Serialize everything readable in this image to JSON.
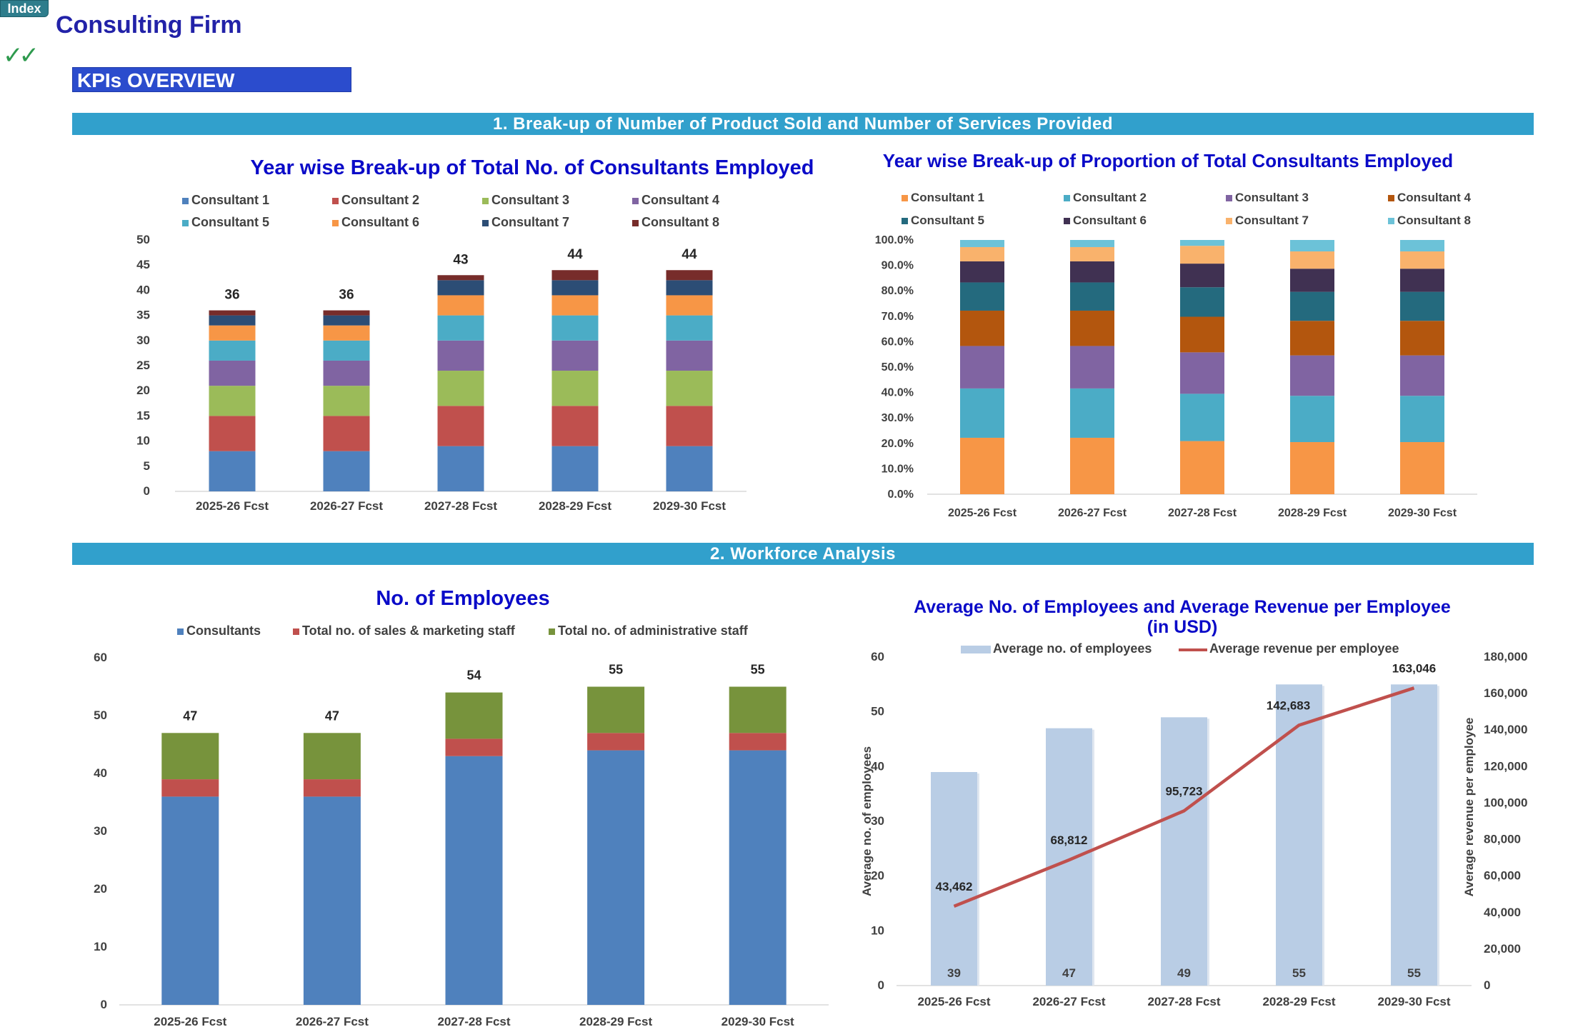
{
  "header": {
    "index_label": "Index",
    "firm_title": "Consulting Firm",
    "check_icon": "double-check-icon",
    "kpi_label": "KPIs OVERVIEW"
  },
  "sections": {
    "s1": "1. Break-up of Number of Product Sold and Number of Services Provided",
    "s2": "2. Workforce Analysis"
  },
  "colors": {
    "title": "#0a0ac8",
    "section_bar": "#31a0cc",
    "kpi_banner": "#2b4ccd"
  },
  "chart_data": [
    {
      "id": "consultants-stacked",
      "type": "bar",
      "stacked": true,
      "title": "Year wise Break-up of Total No. of Consultants Employed",
      "categories": [
        "2025-26 Fcst",
        "2026-27 Fcst",
        "2027-28 Fcst",
        "2028-29 Fcst",
        "2029-30 Fcst"
      ],
      "ylim": [
        0,
        50
      ],
      "yticks": [
        "0",
        "5",
        "10",
        "15",
        "20",
        "25",
        "30",
        "35",
        "40",
        "45",
        "50"
      ],
      "legend_position": "top",
      "series": [
        {
          "name": "Consultant 1",
          "color": "#4f81bd",
          "values": [
            8,
            8,
            9,
            9,
            9
          ]
        },
        {
          "name": "Consultant 2",
          "color": "#c0504d",
          "values": [
            7,
            7,
            8,
            8,
            8
          ]
        },
        {
          "name": "Consultant 3",
          "color": "#9bbb59",
          "values": [
            6,
            6,
            7,
            7,
            7
          ]
        },
        {
          "name": "Consultant 4",
          "color": "#8064a2",
          "values": [
            5,
            5,
            6,
            6,
            6
          ]
        },
        {
          "name": "Consultant 5",
          "color": "#4bacc6",
          "values": [
            4,
            4,
            5,
            5,
            5
          ]
        },
        {
          "name": "Consultant 6",
          "color": "#f79646",
          "values": [
            3,
            3,
            4,
            4,
            4
          ]
        },
        {
          "name": "Consultant 7",
          "color": "#2c4d75",
          "values": [
            2,
            2,
            3,
            3,
            3
          ]
        },
        {
          "name": "Consultant 8",
          "color": "#772c2a",
          "values": [
            1,
            1,
            1,
            2,
            2
          ]
        }
      ],
      "totals": [
        "36",
        "36",
        "43",
        "44",
        "44"
      ]
    },
    {
      "id": "consultants-proportion",
      "type": "bar",
      "stacked": true,
      "percent": true,
      "title": "Year wise Break-up of  Proportion of Total Consultants Employed",
      "categories": [
        "2025-26 Fcst",
        "2026-27 Fcst",
        "2027-28 Fcst",
        "2028-29 Fcst",
        "2029-30 Fcst"
      ],
      "ylim": [
        0,
        100
      ],
      "yticks": [
        "0.0%",
        "10.0%",
        "20.0%",
        "30.0%",
        "40.0%",
        "50.0%",
        "60.0%",
        "70.0%",
        "80.0%",
        "90.0%",
        "100.0%"
      ],
      "legend_position": "top",
      "series": [
        {
          "name": "Consultant 1",
          "color": "#f79646",
          "values": [
            22.2,
            22.2,
            20.9,
            20.5,
            20.5
          ]
        },
        {
          "name": "Consultant 2",
          "color": "#4bacc6",
          "values": [
            19.4,
            19.4,
            18.6,
            18.2,
            18.2
          ]
        },
        {
          "name": "Consultant 3",
          "color": "#8064a2",
          "values": [
            16.7,
            16.7,
            16.3,
            15.9,
            15.9
          ]
        },
        {
          "name": "Consultant 4",
          "color": "#b3560e",
          "values": [
            13.9,
            13.9,
            14.0,
            13.6,
            13.6
          ]
        },
        {
          "name": "Consultant 5",
          "color": "#246a7e",
          "values": [
            11.1,
            11.1,
            11.6,
            11.4,
            11.4
          ]
        },
        {
          "name": "Consultant 6",
          "color": "#403152",
          "values": [
            8.3,
            8.3,
            9.3,
            9.1,
            9.1
          ]
        },
        {
          "name": "Consultant 7",
          "color": "#f9b26c",
          "values": [
            5.6,
            5.6,
            7.0,
            6.8,
            6.8
          ]
        },
        {
          "name": "Consultant 8",
          "color": "#6cc2d8",
          "values": [
            2.8,
            2.8,
            2.3,
            4.5,
            4.5
          ]
        }
      ]
    },
    {
      "id": "employees-stacked",
      "type": "bar",
      "stacked": true,
      "title": "No. of Employees",
      "categories": [
        "2025-26 Fcst",
        "2026-27 Fcst",
        "2027-28 Fcst",
        "2028-29 Fcst",
        "2029-30 Fcst"
      ],
      "ylim": [
        0,
        60
      ],
      "yticks": [
        "0",
        "10",
        "20",
        "30",
        "40",
        "50",
        "60"
      ],
      "legend_position": "top",
      "series": [
        {
          "name": "Consultants",
          "color": "#4f81bd",
          "values": [
            36,
            36,
            43,
            44,
            44
          ]
        },
        {
          "name": "Total no. of sales & marketing staff",
          "color": "#c0504d",
          "values": [
            3,
            3,
            3,
            3,
            3
          ]
        },
        {
          "name": "Total no. of administrative staff",
          "color": "#77933c",
          "values": [
            8,
            8,
            8,
            8,
            8
          ]
        }
      ],
      "totals": [
        "47",
        "47",
        "54",
        "55",
        "55"
      ]
    },
    {
      "id": "avg-employees-revenue",
      "type": "bar+line",
      "title_lines": [
        "Average No. of Employees and Average Revenue per Employee",
        "(in USD)"
      ],
      "categories": [
        "2025-26 Fcst",
        "2026-27 Fcst",
        "2027-28 Fcst",
        "2028-29 Fcst",
        "2029-30 Fcst"
      ],
      "ylabel": "Average no. of employees",
      "y2label": "Average revenue per employee",
      "ylim": [
        0,
        60
      ],
      "y2lim": [
        0,
        180000
      ],
      "yticks": [
        "0",
        "10",
        "20",
        "30",
        "40",
        "50",
        "60"
      ],
      "y2ticks": [
        "0",
        "20,000",
        "40,000",
        "60,000",
        "80,000",
        "100,000",
        "120,000",
        "140,000",
        "160,000",
        "180,000"
      ],
      "legend_position": "top",
      "bar_series": {
        "name": "Average no. of employees",
        "color": "#b9cde5",
        "values": [
          39,
          47,
          49,
          55,
          55
        ],
        "labels": [
          "39",
          "47",
          "49",
          "55",
          "55"
        ]
      },
      "line_series": {
        "name": "Average revenue per employee",
        "color": "#c0504d",
        "values": [
          43462,
          68812,
          95723,
          142683,
          163046
        ],
        "labels": [
          "43,462",
          "68,812",
          "95,723",
          "142,683",
          "163,046"
        ]
      }
    }
  ]
}
